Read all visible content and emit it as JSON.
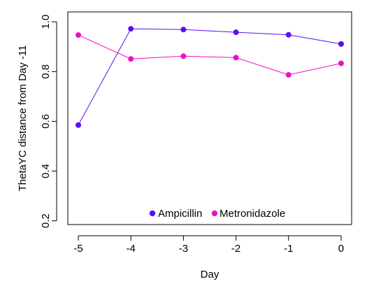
{
  "chart_data": {
    "type": "line",
    "title": "",
    "xlabel": "Day",
    "ylabel": "ThetaYC distance from Day -11",
    "x": [
      -5,
      -4,
      -3,
      -2,
      -1,
      0
    ],
    "x_ticks": [
      "-5",
      "-4",
      "-3",
      "-2",
      "-1",
      "0"
    ],
    "y_ticks": [
      "0.2",
      "0.4",
      "0.6",
      "0.8",
      "1.0"
    ],
    "xlim": [
      -5.2,
      0.2
    ],
    "ylim": [
      0.185,
      1.04
    ],
    "grid": false,
    "legend_position": "bottom-center",
    "series": [
      {
        "name": "Ampicillin",
        "color": "#5a0ff0",
        "values": [
          0.585,
          0.972,
          0.969,
          0.958,
          0.948,
          0.911
        ]
      },
      {
        "name": "Metronidazole",
        "color": "#f00fc8",
        "values": [
          0.947,
          0.851,
          0.862,
          0.856,
          0.787,
          0.833
        ]
      }
    ]
  }
}
